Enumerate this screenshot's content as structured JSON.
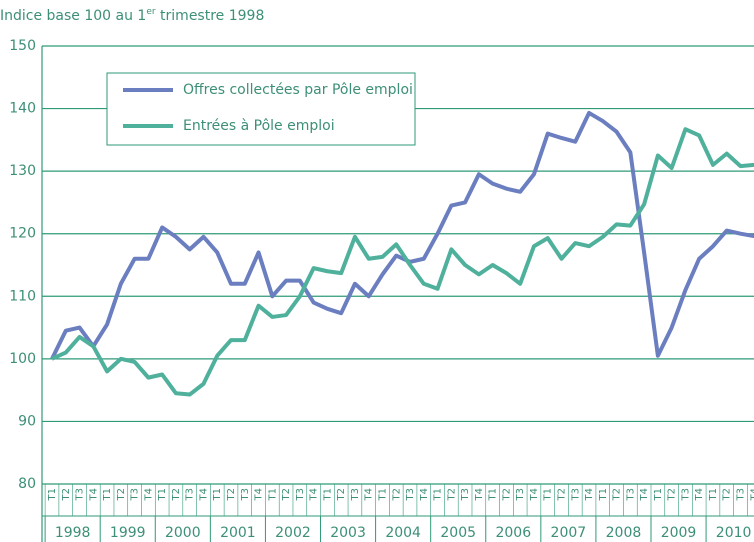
{
  "chart_data": {
    "type": "line",
    "title": [
      "Indice base 100 au 1",
      "er",
      " trimestre 1998"
    ],
    "categories": [
      "T1",
      "T2",
      "T3",
      "T4",
      "T1",
      "T2",
      "T3",
      "T4",
      "T1",
      "T2",
      "T3",
      "T4",
      "T1",
      "T2",
      "T3",
      "T4",
      "T1",
      "T2",
      "T3",
      "T4",
      "T1",
      "T2",
      "T3",
      "T4",
      "T1",
      "T2",
      "T3",
      "T4",
      "T1",
      "T2",
      "T3",
      "T4",
      "T1",
      "T2",
      "T3",
      "T4",
      "T1",
      "T2",
      "T3",
      "T4",
      "T1",
      "T2",
      "T3",
      "T4",
      "T1",
      "T2",
      "T3",
      "T4",
      "T1",
      "T2",
      "T3",
      "T4"
    ],
    "years": [
      "1998",
      "1999",
      "2000",
      "2001",
      "2002",
      "2003",
      "2004",
      "2005",
      "2006",
      "2007",
      "2008",
      "2009",
      "2010"
    ],
    "series": [
      {
        "name": "Offres collectées par Pôle emploi",
        "color": "#6a7ec0",
        "values": [
          100,
          104.5,
          105,
          102,
          105.5,
          112,
          116,
          116,
          121,
          119.5,
          117.5,
          119.5,
          117,
          112,
          112,
          117,
          110,
          112.5,
          112.5,
          109,
          108,
          107.3,
          112,
          110,
          113.5,
          116.5,
          115.5,
          116,
          120,
          124.5,
          125,
          129.5,
          128,
          127.2,
          126.7,
          129.5,
          136,
          135.3,
          134.7,
          139.3,
          138,
          136.3,
          133,
          117,
          100.5,
          105,
          111,
          116,
          118,
          120.5,
          120,
          119.6
        ]
      },
      {
        "name": "Entrées à Pôle emploi",
        "color": "#4fb09c",
        "values": [
          100,
          101,
          103.5,
          102,
          98,
          100,
          99.5,
          97,
          97.5,
          94.5,
          94.3,
          96,
          100.5,
          103,
          103,
          108.5,
          106.7,
          107,
          110,
          114.5,
          114,
          113.7,
          119.5,
          116,
          116.3,
          118.3,
          115,
          112,
          111.2,
          117.5,
          115,
          113.5,
          115,
          113.7,
          112,
          118,
          119.3,
          116,
          118.5,
          118,
          119.5,
          121.5,
          121.3,
          124.7,
          132.5,
          130.5,
          136.7,
          135.7,
          131,
          132.8,
          130.8,
          131
        ]
      }
    ],
    "ylim": [
      80,
      150
    ],
    "yticks": [
      80,
      90,
      100,
      110,
      120,
      130,
      140,
      150
    ],
    "grid": true
  }
}
